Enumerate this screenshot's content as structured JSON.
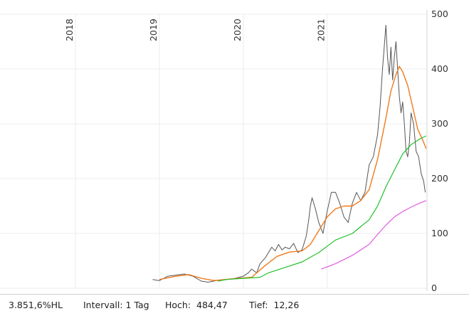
{
  "chart_data": {
    "type": "line",
    "x_ticks": [
      "2018",
      "2019",
      "2020",
      "2021"
    ],
    "y_ticks": [
      "0",
      "100",
      "200",
      "300",
      "400",
      "500"
    ],
    "ylim": [
      0,
      500
    ],
    "grid": true,
    "colors": {
      "price": "#555555",
      "orange": "#f07a1e",
      "green": "#22c02a",
      "magenta": "#e05ce0"
    },
    "series": [
      {
        "key": "price",
        "points": [
          [
            2018.92,
            16
          ],
          [
            2019.0,
            14
          ],
          [
            2019.1,
            22
          ],
          [
            2019.2,
            24
          ],
          [
            2019.3,
            26
          ],
          [
            2019.4,
            22
          ],
          [
            2019.5,
            13
          ],
          [
            2019.58,
            11
          ],
          [
            2019.68,
            14
          ],
          [
            2019.8,
            16
          ],
          [
            2019.9,
            18
          ],
          [
            2020.0,
            22
          ],
          [
            2020.06,
            28
          ],
          [
            2020.1,
            35
          ],
          [
            2020.16,
            28
          ],
          [
            2020.2,
            45
          ],
          [
            2020.26,
            55
          ],
          [
            2020.3,
            65
          ],
          [
            2020.34,
            75
          ],
          [
            2020.38,
            68
          ],
          [
            2020.42,
            80
          ],
          [
            2020.46,
            70
          ],
          [
            2020.5,
            75
          ],
          [
            2020.55,
            72
          ],
          [
            2020.6,
            82
          ],
          [
            2020.65,
            65
          ],
          [
            2020.7,
            70
          ],
          [
            2020.75,
            95
          ],
          [
            2020.78,
            125
          ],
          [
            2020.8,
            150
          ],
          [
            2020.82,
            165
          ],
          [
            2020.86,
            145
          ],
          [
            2020.9,
            120
          ],
          [
            2020.95,
            100
          ],
          [
            2021.0,
            140
          ],
          [
            2021.05,
            175
          ],
          [
            2021.1,
            175
          ],
          [
            2021.15,
            155
          ],
          [
            2021.2,
            130
          ],
          [
            2021.25,
            120
          ],
          [
            2021.3,
            155
          ],
          [
            2021.35,
            175
          ],
          [
            2021.4,
            160
          ],
          [
            2021.45,
            175
          ],
          [
            2021.5,
            225
          ],
          [
            2021.55,
            240
          ],
          [
            2021.6,
            280
          ],
          [
            2021.63,
            330
          ],
          [
            2021.66,
            400
          ],
          [
            2021.68,
            440
          ],
          [
            2021.7,
            480
          ],
          [
            2021.72,
            420
          ],
          [
            2021.74,
            390
          ],
          [
            2021.76,
            440
          ],
          [
            2021.78,
            380
          ],
          [
            2021.8,
            420
          ],
          [
            2021.82,
            450
          ],
          [
            2021.84,
            400
          ],
          [
            2021.86,
            350
          ],
          [
            2021.88,
            320
          ],
          [
            2021.9,
            340
          ],
          [
            2021.92,
            300
          ],
          [
            2021.94,
            250
          ],
          [
            2021.96,
            240
          ],
          [
            2021.98,
            265
          ],
          [
            2022.0,
            320
          ],
          [
            2022.03,
            300
          ],
          [
            2022.06,
            250
          ],
          [
            2022.09,
            240
          ],
          [
            2022.12,
            210
          ],
          [
            2022.15,
            195
          ],
          [
            2022.17,
            175
          ]
        ]
      },
      {
        "key": "orange",
        "points": [
          [
            2019.0,
            16
          ],
          [
            2019.2,
            22
          ],
          [
            2019.35,
            25
          ],
          [
            2019.5,
            18
          ],
          [
            2019.65,
            14
          ],
          [
            2019.85,
            17
          ],
          [
            2020.1,
            20
          ],
          [
            2020.25,
            40
          ],
          [
            2020.4,
            58
          ],
          [
            2020.55,
            66
          ],
          [
            2020.7,
            68
          ],
          [
            2020.8,
            80
          ],
          [
            2020.9,
            105
          ],
          [
            2021.0,
            130
          ],
          [
            2021.1,
            145
          ],
          [
            2021.2,
            150
          ],
          [
            2021.3,
            150
          ],
          [
            2021.4,
            160
          ],
          [
            2021.5,
            180
          ],
          [
            2021.6,
            235
          ],
          [
            2021.7,
            310
          ],
          [
            2021.76,
            360
          ],
          [
            2021.82,
            390
          ],
          [
            2021.86,
            405
          ],
          [
            2021.9,
            395
          ],
          [
            2021.96,
            370
          ],
          [
            2022.02,
            330
          ],
          [
            2022.08,
            290
          ],
          [
            2022.14,
            270
          ],
          [
            2022.18,
            255
          ]
        ]
      },
      {
        "key": "green",
        "points": [
          [
            2019.7,
            13
          ],
          [
            2019.8,
            16
          ],
          [
            2020.0,
            18
          ],
          [
            2020.2,
            20
          ],
          [
            2020.3,
            28
          ],
          [
            2020.5,
            38
          ],
          [
            2020.7,
            48
          ],
          [
            2020.9,
            65
          ],
          [
            2021.1,
            88
          ],
          [
            2021.3,
            100
          ],
          [
            2021.5,
            125
          ],
          [
            2021.6,
            150
          ],
          [
            2021.7,
            185
          ],
          [
            2021.8,
            215
          ],
          [
            2021.9,
            245
          ],
          [
            2022.0,
            262
          ],
          [
            2022.1,
            272
          ],
          [
            2022.18,
            278
          ]
        ]
      },
      {
        "key": "magenta",
        "points": [
          [
            2020.93,
            35
          ],
          [
            2021.1,
            45
          ],
          [
            2021.3,
            60
          ],
          [
            2021.5,
            80
          ],
          [
            2021.6,
            98
          ],
          [
            2021.7,
            115
          ],
          [
            2021.8,
            130
          ],
          [
            2021.9,
            140
          ],
          [
            2022.0,
            148
          ],
          [
            2022.1,
            155
          ],
          [
            2022.18,
            160
          ]
        ]
      }
    ]
  },
  "footer": {
    "range": "3.851,6%HL",
    "interval": "Intervall: 1 Tag",
    "high": "Hoch:  484,47",
    "low": "Tief:  12,26"
  }
}
